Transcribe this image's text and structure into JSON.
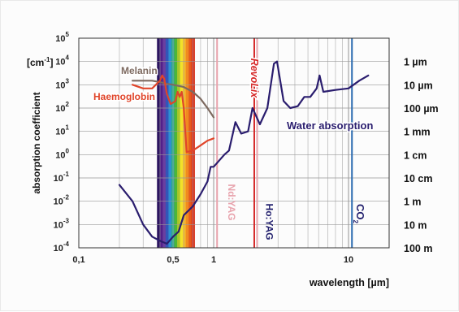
{
  "chart_data": {
    "type": "line",
    "x_scale": "log",
    "y_scale": "log",
    "xlim": [
      0.1,
      20
    ],
    "ylim": [
      0.0001,
      100000
    ],
    "xlabel": "wavelength [µm]",
    "ylabel": "absorption coefficient",
    "y_unit": "[cm-1]",
    "x_ticks": [
      {
        "value": 0.1,
        "label": "0,1"
      },
      {
        "value": 0.5,
        "label": "0,5"
      },
      {
        "value": 1,
        "label": "1"
      },
      {
        "value": 10,
        "label": "10"
      }
    ],
    "y_ticks": [
      {
        "exp": 5,
        "base": "10",
        "sup": "5"
      },
      {
        "exp": 4,
        "base": "10",
        "sup": "4"
      },
      {
        "exp": 3,
        "base": "10",
        "sup": "3"
      },
      {
        "exp": 2,
        "base": "10",
        "sup": "2"
      },
      {
        "exp": 1,
        "base": "10",
        "sup": "1"
      },
      {
        "exp": 0,
        "base": "10",
        "sup": "0"
      },
      {
        "exp": -1,
        "base": "10",
        "sup": "-1"
      },
      {
        "exp": -2,
        "base": "10",
        "sup": "-2"
      },
      {
        "exp": -3,
        "base": "10",
        "sup": "-3"
      },
      {
        "exp": -4,
        "base": "10",
        "sup": "-4"
      }
    ],
    "right_axis": [
      {
        "exp": 4,
        "label": "1 µm"
      },
      {
        "exp": 3,
        "label": "10 µm"
      },
      {
        "exp": 2,
        "label": "100 µm"
      },
      {
        "exp": 1,
        "label": "1 mm"
      },
      {
        "exp": 0,
        "label": "1 cm"
      },
      {
        "exp": -1,
        "label": "10 cm"
      },
      {
        "exp": -2,
        "label": "1 m"
      },
      {
        "exp": -3,
        "label": "10 m"
      },
      {
        "exp": -4,
        "label": "100 m"
      }
    ],
    "spectrum_band": {
      "from": 0.38,
      "to": 0.72
    },
    "series": [
      {
        "name": "Water absorption",
        "color": "#2a1d6e",
        "x": [
          0.2,
          0.25,
          0.3,
          0.35,
          0.4,
          0.45,
          0.5,
          0.55,
          0.6,
          0.7,
          0.8,
          0.9,
          0.95,
          1.0,
          1.2,
          1.3,
          1.45,
          1.6,
          1.8,
          1.94,
          2.2,
          2.5,
          2.8,
          2.95,
          3.3,
          3.7,
          4.2,
          4.7,
          5.2,
          5.8,
          6.1,
          6.5,
          8,
          10,
          12,
          14
        ],
        "y": [
          0.05,
          0.01,
          0.001,
          0.0003,
          0.0002,
          0.00015,
          0.0003,
          0.0005,
          0.0025,
          0.006,
          0.02,
          0.07,
          0.3,
          0.3,
          1,
          1.5,
          25,
          8,
          10,
          100,
          20,
          100,
          8000,
          10000,
          200,
          100,
          120,
          300,
          300,
          700,
          2500,
          500,
          600,
          700,
          1500,
          2500
        ]
      },
      {
        "name": "Melanin",
        "color": "#7d6a60",
        "x": [
          0.25,
          0.3,
          0.35,
          0.4,
          0.45,
          0.5,
          0.6,
          0.7,
          0.8,
          0.9,
          1.0
        ],
        "y": [
          1500,
          1500,
          1500,
          1300,
          1100,
          1000,
          800,
          500,
          250,
          100,
          40
        ]
      },
      {
        "name": "Haemoglobin",
        "color": "#e0452a",
        "x": [
          0.25,
          0.3,
          0.35,
          0.4,
          0.415,
          0.43,
          0.45,
          0.48,
          0.52,
          0.54,
          0.56,
          0.58,
          0.6,
          0.63,
          0.7,
          0.8,
          0.9,
          1.0
        ],
        "y": [
          1000,
          700,
          700,
          1500,
          2500,
          1800,
          400,
          150,
          200,
          500,
          300,
          500,
          100,
          1.3,
          1.5,
          2.5,
          4,
          5
        ]
      }
    ],
    "lasers": [
      {
        "label": "Nd:YAG",
        "wavelength": 1.06,
        "color": "#e8a3ad"
      },
      {
        "label": "Ho:YAG",
        "wavelength": 2.1,
        "color": "#e8a3ad"
      },
      {
        "label": "RevoLix",
        "wavelength": 2.0,
        "color": "#d62a2a"
      },
      {
        "label": "CO",
        "sub": "2",
        "wavelength": 10.6,
        "color": "#2a6bb0"
      }
    ],
    "grid": true
  }
}
